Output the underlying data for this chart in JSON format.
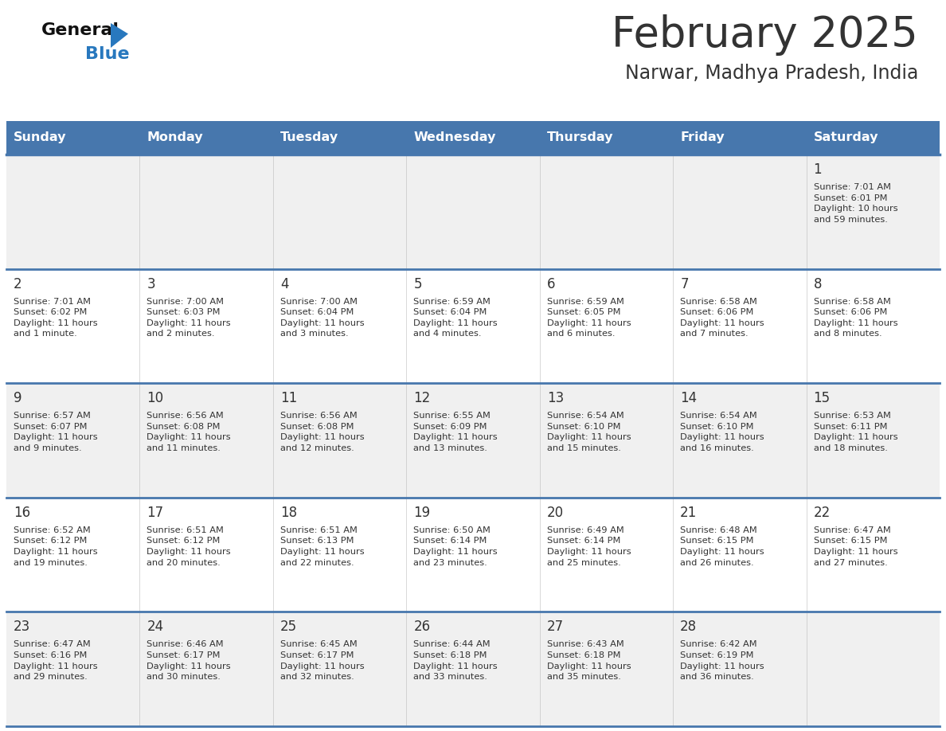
{
  "title": "February 2025",
  "subtitle": "Narwar, Madhya Pradesh, India",
  "header_color": "#4777AD",
  "header_text_color": "#FFFFFF",
  "day_names": [
    "Sunday",
    "Monday",
    "Tuesday",
    "Wednesday",
    "Thursday",
    "Friday",
    "Saturday"
  ],
  "background_color": "#FFFFFF",
  "cell_bg_light": "#F0F0F0",
  "cell_bg_white": "#FFFFFF",
  "border_color": "#4777AD",
  "text_color": "#333333",
  "day_num_color": "#333333",
  "calendar_data": [
    [
      null,
      null,
      null,
      null,
      null,
      null,
      {
        "day": 1,
        "sunrise": "7:01 AM",
        "sunset": "6:01 PM",
        "daylight": "10 hours\nand 59 minutes."
      }
    ],
    [
      {
        "day": 2,
        "sunrise": "7:01 AM",
        "sunset": "6:02 PM",
        "daylight": "11 hours\nand 1 minute."
      },
      {
        "day": 3,
        "sunrise": "7:00 AM",
        "sunset": "6:03 PM",
        "daylight": "11 hours\nand 2 minutes."
      },
      {
        "day": 4,
        "sunrise": "7:00 AM",
        "sunset": "6:04 PM",
        "daylight": "11 hours\nand 3 minutes."
      },
      {
        "day": 5,
        "sunrise": "6:59 AM",
        "sunset": "6:04 PM",
        "daylight": "11 hours\nand 4 minutes."
      },
      {
        "day": 6,
        "sunrise": "6:59 AM",
        "sunset": "6:05 PM",
        "daylight": "11 hours\nand 6 minutes."
      },
      {
        "day": 7,
        "sunrise": "6:58 AM",
        "sunset": "6:06 PM",
        "daylight": "11 hours\nand 7 minutes."
      },
      {
        "day": 8,
        "sunrise": "6:58 AM",
        "sunset": "6:06 PM",
        "daylight": "11 hours\nand 8 minutes."
      }
    ],
    [
      {
        "day": 9,
        "sunrise": "6:57 AM",
        "sunset": "6:07 PM",
        "daylight": "11 hours\nand 9 minutes."
      },
      {
        "day": 10,
        "sunrise": "6:56 AM",
        "sunset": "6:08 PM",
        "daylight": "11 hours\nand 11 minutes."
      },
      {
        "day": 11,
        "sunrise": "6:56 AM",
        "sunset": "6:08 PM",
        "daylight": "11 hours\nand 12 minutes."
      },
      {
        "day": 12,
        "sunrise": "6:55 AM",
        "sunset": "6:09 PM",
        "daylight": "11 hours\nand 13 minutes."
      },
      {
        "day": 13,
        "sunrise": "6:54 AM",
        "sunset": "6:10 PM",
        "daylight": "11 hours\nand 15 minutes."
      },
      {
        "day": 14,
        "sunrise": "6:54 AM",
        "sunset": "6:10 PM",
        "daylight": "11 hours\nand 16 minutes."
      },
      {
        "day": 15,
        "sunrise": "6:53 AM",
        "sunset": "6:11 PM",
        "daylight": "11 hours\nand 18 minutes."
      }
    ],
    [
      {
        "day": 16,
        "sunrise": "6:52 AM",
        "sunset": "6:12 PM",
        "daylight": "11 hours\nand 19 minutes."
      },
      {
        "day": 17,
        "sunrise": "6:51 AM",
        "sunset": "6:12 PM",
        "daylight": "11 hours\nand 20 minutes."
      },
      {
        "day": 18,
        "sunrise": "6:51 AM",
        "sunset": "6:13 PM",
        "daylight": "11 hours\nand 22 minutes."
      },
      {
        "day": 19,
        "sunrise": "6:50 AM",
        "sunset": "6:14 PM",
        "daylight": "11 hours\nand 23 minutes."
      },
      {
        "day": 20,
        "sunrise": "6:49 AM",
        "sunset": "6:14 PM",
        "daylight": "11 hours\nand 25 minutes."
      },
      {
        "day": 21,
        "sunrise": "6:48 AM",
        "sunset": "6:15 PM",
        "daylight": "11 hours\nand 26 minutes."
      },
      {
        "day": 22,
        "sunrise": "6:47 AM",
        "sunset": "6:15 PM",
        "daylight": "11 hours\nand 27 minutes."
      }
    ],
    [
      {
        "day": 23,
        "sunrise": "6:47 AM",
        "sunset": "6:16 PM",
        "daylight": "11 hours\nand 29 minutes."
      },
      {
        "day": 24,
        "sunrise": "6:46 AM",
        "sunset": "6:17 PM",
        "daylight": "11 hours\nand 30 minutes."
      },
      {
        "day": 25,
        "sunrise": "6:45 AM",
        "sunset": "6:17 PM",
        "daylight": "11 hours\nand 32 minutes."
      },
      {
        "day": 26,
        "sunrise": "6:44 AM",
        "sunset": "6:18 PM",
        "daylight": "11 hours\nand 33 minutes."
      },
      {
        "day": 27,
        "sunrise": "6:43 AM",
        "sunset": "6:18 PM",
        "daylight": "11 hours\nand 35 minutes."
      },
      {
        "day": 28,
        "sunrise": "6:42 AM",
        "sunset": "6:19 PM",
        "daylight": "11 hours\nand 36 minutes."
      },
      null
    ]
  ],
  "logo_color_general": "#111111",
  "logo_color_blue": "#2878BE",
  "logo_triangle_color": "#2878BE",
  "title_fontsize": 38,
  "subtitle_fontsize": 17,
  "header_fontsize": 11.5,
  "day_num_fontsize": 12,
  "cell_text_fontsize": 8.2
}
